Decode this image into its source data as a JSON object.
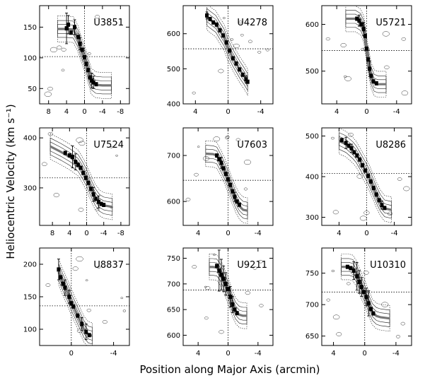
{
  "figure": {
    "ylabel": "Heliocentric Velocity (km s⁻¹)",
    "xlabel": "Position along Major Axis (arcmin)"
  },
  "chart_data": [
    {
      "type": "scatter",
      "title": "U3851",
      "xlim": [
        10,
        -10
      ],
      "ylim": [
        25,
        185
      ],
      "xticks": [
        8,
        4,
        0,
        -4,
        -8
      ],
      "xticklabels": [
        "8",
        "4",
        "0",
        "-4",
        "-8"
      ],
      "yticks": [
        50,
        100,
        150
      ],
      "yticklabels": [
        "50",
        "100",
        "150"
      ],
      "systemic": 102,
      "curve": [
        [
          6,
          147
        ],
        [
          4,
          147
        ],
        [
          2.5,
          146
        ],
        [
          1.5,
          132
        ],
        [
          1,
          120
        ],
        [
          0.5,
          110
        ],
        [
          0,
          100
        ],
        [
          -0.5,
          88
        ],
        [
          -1,
          75
        ],
        [
          -1.5,
          62
        ],
        [
          -2.5,
          56
        ],
        [
          -4,
          55
        ],
        [
          -6,
          55
        ]
      ],
      "points": [
        [
          4,
          148
        ],
        [
          3.6,
          154
        ],
        [
          3,
          141
        ],
        [
          2.2,
          150
        ],
        [
          1.4,
          134
        ],
        [
          1,
          123
        ],
        [
          0.5,
          113
        ],
        [
          0,
          101
        ],
        [
          -0.4,
          90
        ],
        [
          -0.8,
          80
        ],
        [
          -1.2,
          68
        ],
        [
          -1.6,
          63
        ],
        [
          -2,
          60
        ],
        [
          -2.6,
          57
        ]
      ],
      "errors": [
        [
          4,
          148,
          25
        ],
        [
          3.6,
          154,
          15
        ],
        [
          2.2,
          150,
          12
        ],
        [
          1,
          123,
          10
        ],
        [
          -1.6,
          63,
          12
        ],
        [
          -2,
          60,
          10
        ]
      ]
    },
    {
      "type": "scatter",
      "title": "U4278",
      "xlim": [
        5.5,
        -5.5
      ],
      "ylim": [
        400,
        680
      ],
      "xticks": [
        4,
        0,
        -4
      ],
      "xticklabels": [
        "4",
        "0",
        "-4"
      ],
      "yticks": [
        400,
        500,
        600
      ],
      "yticklabels": [
        "400",
        "500",
        "600"
      ],
      "systemic": 557,
      "curve": [
        [
          2.6,
          648
        ],
        [
          2.2,
          640
        ],
        [
          1.5,
          628
        ],
        [
          1,
          608
        ],
        [
          0.5,
          590
        ],
        [
          0,
          560
        ],
        [
          -0.5,
          535
        ],
        [
          -1,
          515
        ],
        [
          -1.5,
          495
        ],
        [
          -2,
          478
        ],
        [
          -2.4,
          462
        ]
      ],
      "points": [
        [
          2.6,
          652
        ],
        [
          2.2,
          642
        ],
        [
          1.8,
          632
        ],
        [
          1.4,
          626
        ],
        [
          1,
          610
        ],
        [
          0.6,
          595
        ],
        [
          0.2,
          575
        ],
        [
          -0.2,
          552
        ],
        [
          -0.6,
          530
        ],
        [
          -1,
          515
        ],
        [
          -1.4,
          498
        ],
        [
          -1.8,
          483
        ],
        [
          -2.2,
          470
        ],
        [
          -2.4,
          463
        ]
      ],
      "errors": [
        [
          2.6,
          652,
          10
        ],
        [
          -2.2,
          470,
          10
        ]
      ]
    },
    {
      "type": "scatter",
      "title": "U5721",
      "xlim": [
        6,
        -6
      ],
      "ylim": [
        430,
        640
      ],
      "xticks": [
        4,
        0,
        -4
      ],
      "xticklabels": [
        "4",
        "0",
        "-4"
      ],
      "yticks": [
        500,
        600
      ],
      "yticklabels": [
        "500",
        "600"
      ],
      "systemic": 544,
      "curve": [
        [
          2.8,
          612
        ],
        [
          1.5,
          612
        ],
        [
          0.8,
          605
        ],
        [
          0.4,
          590
        ],
        [
          0.2,
          570
        ],
        [
          0,
          545
        ],
        [
          -0.3,
          515
        ],
        [
          -0.6,
          490
        ],
        [
          -1,
          475
        ],
        [
          -1.5,
          472
        ],
        [
          -2.6,
          472
        ]
      ],
      "points": [
        [
          1.3,
          612
        ],
        [
          1,
          608
        ],
        [
          0.7,
          600
        ],
        [
          0.4,
          590
        ],
        [
          0.2,
          575
        ],
        [
          0,
          548
        ],
        [
          -0.2,
          525
        ],
        [
          -0.4,
          505
        ],
        [
          -0.6,
          490
        ],
        [
          -0.9,
          478
        ],
        [
          -1.3,
          474
        ]
      ],
      "errors": [
        [
          1,
          608,
          12
        ],
        [
          0.4,
          590,
          14
        ],
        [
          -0.4,
          505,
          16
        ]
      ]
    },
    {
      "type": "scatter",
      "title": "U7524",
      "xlim": [
        11,
        -10
      ],
      "ylim": [
        225,
        420
      ],
      "xticks": [
        8,
        4,
        0,
        -4,
        -8
      ],
      "xticklabels": [
        "8",
        "4",
        "0",
        "-4",
        "-8"
      ],
      "yticks": [
        300,
        400
      ],
      "yticklabels": [
        "300",
        "400"
      ],
      "systemic": 320,
      "curve": [
        [
          8.5,
          383
        ],
        [
          6,
          372
        ],
        [
          4,
          362
        ],
        [
          2,
          350
        ],
        [
          1,
          336
        ],
        [
          0,
          320
        ],
        [
          -1,
          300
        ],
        [
          -2,
          282
        ],
        [
          -3,
          270
        ],
        [
          -4,
          265
        ],
        [
          -6,
          262
        ]
      ],
      "points": [
        [
          5,
          370
        ],
        [
          4,
          365
        ],
        [
          3.3,
          362
        ],
        [
          2.6,
          352
        ],
        [
          2,
          346
        ],
        [
          1.4,
          340
        ],
        [
          0.8,
          330
        ],
        [
          0.2,
          320
        ],
        [
          -0.4,
          310
        ],
        [
          -1,
          298
        ],
        [
          -1.6,
          287
        ],
        [
          -2.2,
          278
        ],
        [
          -2.8,
          272
        ],
        [
          -3.4,
          268
        ],
        [
          -4,
          266
        ]
      ],
      "errors": [
        [
          3.3,
          362,
          22
        ],
        [
          2.6,
          352,
          16
        ],
        [
          -1.6,
          287,
          14
        ],
        [
          -2.8,
          272,
          12
        ]
      ]
    },
    {
      "type": "scatter",
      "title": "U7603",
      "xlim": [
        6,
        -6
      ],
      "ylim": [
        548,
        760
      ],
      "xticks": [
        4,
        0,
        -4
      ],
      "xticklabels": [
        "4",
        "0",
        "-4"
      ],
      "yticks": [
        600,
        700
      ],
      "yticklabels": [
        "600",
        "700"
      ],
      "systemic": 646,
      "curve": [
        [
          3,
          704
        ],
        [
          2,
          703
        ],
        [
          1.5,
          700
        ],
        [
          1,
          685
        ],
        [
          0.5,
          668
        ],
        [
          0,
          648
        ],
        [
          -0.5,
          625
        ],
        [
          -1,
          605
        ],
        [
          -1.5,
          590
        ],
        [
          -2,
          582
        ],
        [
          -2.6,
          580
        ]
      ],
      "points": [
        [
          1.5,
          700
        ],
        [
          1.2,
          692
        ],
        [
          0.9,
          684
        ],
        [
          0.6,
          672
        ],
        [
          0.3,
          660
        ],
        [
          0,
          648
        ],
        [
          -0.3,
          636
        ],
        [
          -0.6,
          622
        ],
        [
          -0.9,
          610
        ],
        [
          -1.2,
          600
        ],
        [
          -1.5,
          593
        ]
      ],
      "errors": [
        [
          0.9,
          684,
          12
        ],
        [
          -0.9,
          610,
          10
        ]
      ]
    },
    {
      "type": "scatter",
      "title": "U8286",
      "xlim": [
        6.5,
        -6.5
      ],
      "ylim": [
        280,
        520
      ],
      "xticks": [
        4,
        0,
        -4
      ],
      "xticklabels": [
        "4",
        "0",
        "-4"
      ],
      "yticks": [
        300,
        400,
        500
      ],
      "yticklabels": [
        "300",
        "400",
        "500"
      ],
      "systemic": 408,
      "curve": [
        [
          4,
          488
        ],
        [
          3,
          480
        ],
        [
          2,
          465
        ],
        [
          1.5,
          455
        ],
        [
          1,
          440
        ],
        [
          0.5,
          425
        ],
        [
          0,
          410
        ],
        [
          -0.5,
          392
        ],
        [
          -1,
          372
        ],
        [
          -1.5,
          352
        ],
        [
          -2,
          335
        ],
        [
          -2.6,
          322
        ],
        [
          -3.6,
          318
        ]
      ],
      "points": [
        [
          3.6,
          490
        ],
        [
          3,
          483
        ],
        [
          2.6,
          476
        ],
        [
          2.2,
          470
        ],
        [
          1.8,
          460
        ],
        [
          1.4,
          452
        ],
        [
          1,
          442
        ],
        [
          0.6,
          428
        ],
        [
          0.2,
          415
        ],
        [
          -0.2,
          402
        ],
        [
          -0.6,
          388
        ],
        [
          -1,
          372
        ],
        [
          -1.4,
          356
        ],
        [
          -1.8,
          342
        ],
        [
          -2.2,
          330
        ],
        [
          -2.6,
          323
        ]
      ],
      "errors": [
        [
          3,
          483,
          14
        ],
        [
          2.2,
          470,
          10
        ],
        [
          -2.2,
          330,
          10
        ]
      ]
    },
    {
      "type": "scatter",
      "title": "U8837",
      "xlim": [
        3,
        -5.5
      ],
      "ylim": [
        75,
        225
      ],
      "xticks": [
        0,
        -4
      ],
      "xticklabels": [
        "0",
        "-4"
      ],
      "yticks": [
        100,
        150,
        200
      ],
      "yticklabels": [
        "100",
        "150",
        "200"
      ],
      "systemic": 136,
      "curve": [
        [
          1.2,
          188
        ],
        [
          0.8,
          172
        ],
        [
          0.4,
          158
        ],
        [
          0,
          142
        ],
        [
          -0.4,
          128
        ],
        [
          -0.8,
          114
        ],
        [
          -1.2,
          100
        ],
        [
          -1.6,
          92
        ],
        [
          -2,
          90
        ]
      ],
      "points": [
        [
          1.2,
          192
        ],
        [
          1,
          180
        ],
        [
          0.8,
          170
        ],
        [
          0.6,
          164
        ],
        [
          0.2,
          150
        ],
        [
          0,
          140
        ],
        [
          -0.2,
          135
        ],
        [
          -0.6,
          121
        ],
        [
          -1,
          108
        ],
        [
          -1.4,
          96
        ],
        [
          -1.7,
          91
        ]
      ],
      "errors": [
        [
          1.2,
          192,
          16
        ],
        [
          0.6,
          164,
          12
        ],
        [
          0.2,
          150,
          10
        ],
        [
          -1,
          108,
          10
        ],
        [
          -1.4,
          96,
          12
        ]
      ]
    },
    {
      "type": "scatter",
      "title": "U9211",
      "xlim": [
        6,
        -6
      ],
      "ylim": [
        580,
        770
      ],
      "xticks": [
        4,
        0,
        -4
      ],
      "xticklabels": [
        "4",
        "0",
        "-4"
      ],
      "yticks": [
        600,
        650,
        700,
        750
      ],
      "yticklabels": [
        "600",
        "650",
        "700",
        "750"
      ],
      "systemic": 688,
      "curve": [
        [
          2.5,
          733
        ],
        [
          2,
          733
        ],
        [
          1.5,
          732
        ],
        [
          1,
          722
        ],
        [
          0.5,
          705
        ],
        [
          0,
          688
        ],
        [
          -0.5,
          665
        ],
        [
          -1,
          648
        ],
        [
          -1.5,
          640
        ],
        [
          -2,
          638
        ],
        [
          -2.5,
          638
        ]
      ],
      "points": [
        [
          1.5,
          735
        ],
        [
          1.2,
          726
        ],
        [
          0.9,
          718
        ],
        [
          0.6,
          710
        ],
        [
          0.3,
          700
        ],
        [
          0,
          690
        ],
        [
          -0.3,
          675
        ],
        [
          -0.6,
          660
        ],
        [
          -0.9,
          650
        ],
        [
          -1.2,
          643
        ]
      ],
      "errors": [
        [
          1.2,
          726,
          40
        ],
        [
          0.9,
          718,
          30
        ],
        [
          0.6,
          710,
          25
        ],
        [
          0.3,
          700,
          22
        ],
        [
          -0.3,
          675,
          20
        ],
        [
          -0.6,
          660,
          16
        ]
      ]
    },
    {
      "type": "scatter",
      "title": "U10310",
      "xlim": [
        5.5,
        -6
      ],
      "ylim": [
        635,
        790
      ],
      "xticks": [
        4,
        0,
        -4
      ],
      "xticklabels": [
        "4",
        "0",
        "-4"
      ],
      "yticks": [
        650,
        700,
        750
      ],
      "yticklabels": [
        "650",
        "700",
        "750"
      ],
      "systemic": 720,
      "curve": [
        [
          3,
          760
        ],
        [
          2,
          760
        ],
        [
          1.5,
          758
        ],
        [
          1,
          748
        ],
        [
          0.5,
          732
        ],
        [
          0,
          718
        ],
        [
          -0.5,
          702
        ],
        [
          -1,
          688
        ],
        [
          -1.5,
          682
        ],
        [
          -2,
          680
        ],
        [
          -3.2,
          678
        ]
      ],
      "points": [
        [
          2.2,
          760
        ],
        [
          1.8,
          758
        ],
        [
          1.4,
          754
        ],
        [
          1,
          745
        ],
        [
          0.7,
          736
        ],
        [
          0.4,
          728
        ],
        [
          0.1,
          720
        ],
        [
          -0.2,
          712
        ],
        [
          -0.5,
          702
        ],
        [
          -0.8,
          693
        ],
        [
          -1.1,
          686
        ]
      ],
      "errors": [
        [
          1.4,
          754,
          14
        ],
        [
          1,
          745,
          22
        ],
        [
          0.7,
          736,
          18
        ],
        [
          0.4,
          728,
          15
        ],
        [
          -0.2,
          712,
          14
        ],
        [
          -0.5,
          702,
          20
        ]
      ]
    }
  ]
}
